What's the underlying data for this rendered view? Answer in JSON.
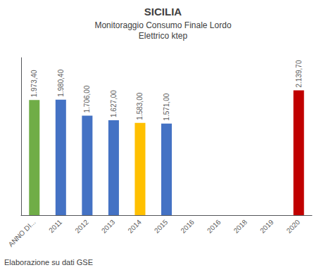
{
  "chart_data": {
    "type": "bar",
    "title": "SICILIA",
    "subtitle": "Monitoraggio Consumo Finale Lordo\nElettrico ktep",
    "categories": [
      "ANNO DI...",
      "2011",
      "2012",
      "2013",
      "2014",
      "2015",
      "2016",
      "2016",
      "2018",
      "2019",
      "2020"
    ],
    "values": [
      1973.4,
      1980.4,
      1706.0,
      1627.0,
      1583.0,
      1571.0,
      0,
      0,
      0,
      0,
      2139.7
    ],
    "value_labels": [
      "1.973,40",
      "1.980,40",
      "1.706,00",
      "1.627,00",
      "1.583,00",
      "1.571,00",
      null,
      null,
      null,
      null,
      "2.139,70"
    ],
    "colors": [
      "#70ad47",
      "#4472c4",
      "#4472c4",
      "#4472c4",
      "#ffc000",
      "#4472c4",
      "#4472c4",
      "#4472c4",
      "#4472c4",
      "#4472c4",
      "#c00000"
    ],
    "ylim": [
      0,
      2700
    ],
    "grid": false,
    "tick_labels": "x",
    "annotations": [
      "Elaborazione su dati GSE"
    ]
  }
}
